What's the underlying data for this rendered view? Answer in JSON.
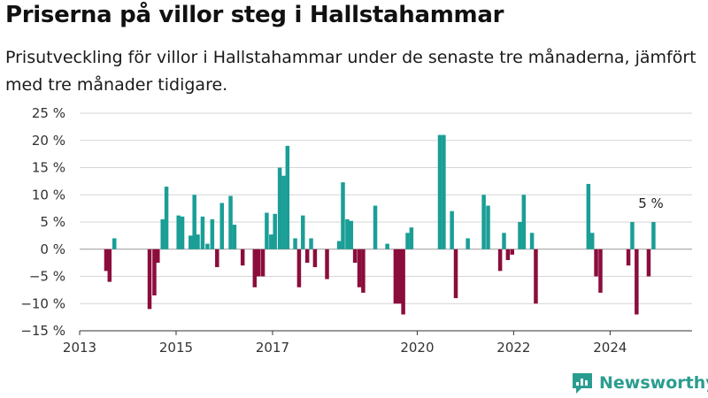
{
  "title": "Priserna på villor steg i Hallstahammar",
  "subtitle": "Prisutveckling för villor i Hallstahammar under de senaste tre månaderna, jämfört med tre månader tidigare.",
  "brand": {
    "name": "Newsworthy",
    "icon": "newsworthy-logo-icon"
  },
  "colors": {
    "positive": "#1a9e96",
    "negative": "#8b0d3c",
    "grid": "#d6d6d6",
    "axis": "#333333",
    "brand": "#2a9d8f"
  },
  "chart_data": {
    "type": "bar",
    "ylabel": "",
    "xlabel": "",
    "ylim": [
      -15,
      25
    ],
    "y_ticks": [
      -15,
      -10,
      -5,
      0,
      5,
      10,
      15,
      20,
      25
    ],
    "y_tick_labels": [
      "−15 %",
      "−10 %",
      "−5 %",
      "0 %",
      "5 %",
      "10 %",
      "15 %",
      "20 %",
      "25 %"
    ],
    "x_range": [
      2013,
      2025.7
    ],
    "x_ticks": [
      2013,
      2015,
      2017,
      2020,
      2022,
      2024
    ],
    "x_tick_labels": [
      "2013",
      "2015",
      "2017",
      "2020",
      "2022",
      "2024"
    ],
    "annotation": {
      "text": "5 %",
      "x": 2024.92,
      "y": 5
    },
    "grid": true,
    "bars": [
      {
        "x": 2013.55,
        "y": -4
      },
      {
        "x": 2013.62,
        "y": -6
      },
      {
        "x": 2013.72,
        "y": 2
      },
      {
        "x": 2014.45,
        "y": -11
      },
      {
        "x": 2014.55,
        "y": -8.5
      },
      {
        "x": 2014.62,
        "y": -2.5
      },
      {
        "x": 2014.72,
        "y": 5.5
      },
      {
        "x": 2014.8,
        "y": 11.5
      },
      {
        "x": 2015.05,
        "y": 6.2
      },
      {
        "x": 2015.13,
        "y": 6
      },
      {
        "x": 2015.3,
        "y": 2.5
      },
      {
        "x": 2015.38,
        "y": 10
      },
      {
        "x": 2015.45,
        "y": 2.7
      },
      {
        "x": 2015.55,
        "y": 6
      },
      {
        "x": 2015.65,
        "y": 1
      },
      {
        "x": 2015.75,
        "y": 5.5
      },
      {
        "x": 2015.85,
        "y": -3.3
      },
      {
        "x": 2015.95,
        "y": 8.5
      },
      {
        "x": 2016.13,
        "y": 9.8
      },
      {
        "x": 2016.21,
        "y": 4.5
      },
      {
        "x": 2016.38,
        "y": -3
      },
      {
        "x": 2016.63,
        "y": -7
      },
      {
        "x": 2016.71,
        "y": -5
      },
      {
        "x": 2016.8,
        "y": -5
      },
      {
        "x": 2016.88,
        "y": 6.7
      },
      {
        "x": 2016.97,
        "y": 2.7
      },
      {
        "x": 2017.05,
        "y": 6.5
      },
      {
        "x": 2017.15,
        "y": 15
      },
      {
        "x": 2017.23,
        "y": 13.5
      },
      {
        "x": 2017.31,
        "y": 19
      },
      {
        "x": 2017.47,
        "y": 2
      },
      {
        "x": 2017.55,
        "y": -7
      },
      {
        "x": 2017.63,
        "y": 6.2
      },
      {
        "x": 2017.72,
        "y": -2.5
      },
      {
        "x": 2017.8,
        "y": 2
      },
      {
        "x": 2017.88,
        "y": -3.3
      },
      {
        "x": 2018.13,
        "y": -5.5
      },
      {
        "x": 2018.38,
        "y": 1.5
      },
      {
        "x": 2018.46,
        "y": 12.3
      },
      {
        "x": 2018.55,
        "y": 5.5
      },
      {
        "x": 2018.63,
        "y": 5.2
      },
      {
        "x": 2018.71,
        "y": -2.5
      },
      {
        "x": 2018.8,
        "y": -7
      },
      {
        "x": 2018.88,
        "y": -8
      },
      {
        "x": 2019.13,
        "y": 8
      },
      {
        "x": 2019.38,
        "y": 1
      },
      {
        "x": 2019.55,
        "y": -10
      },
      {
        "x": 2019.63,
        "y": -10
      },
      {
        "x": 2019.71,
        "y": -12
      },
      {
        "x": 2019.8,
        "y": 3
      },
      {
        "x": 2019.88,
        "y": 4
      },
      {
        "x": 2020.47,
        "y": 21
      },
      {
        "x": 2020.55,
        "y": 21
      },
      {
        "x": 2020.72,
        "y": 7
      },
      {
        "x": 2020.8,
        "y": -9
      },
      {
        "x": 2021.05,
        "y": 2
      },
      {
        "x": 2021.38,
        "y": 10
      },
      {
        "x": 2021.47,
        "y": 8
      },
      {
        "x": 2021.72,
        "y": -4
      },
      {
        "x": 2021.8,
        "y": 3
      },
      {
        "x": 2021.88,
        "y": -2
      },
      {
        "x": 2021.97,
        "y": -1
      },
      {
        "x": 2022.13,
        "y": 5
      },
      {
        "x": 2022.21,
        "y": 10
      },
      {
        "x": 2022.38,
        "y": 3
      },
      {
        "x": 2022.46,
        "y": -10
      },
      {
        "x": 2023.55,
        "y": 12
      },
      {
        "x": 2023.63,
        "y": 3
      },
      {
        "x": 2023.71,
        "y": -5
      },
      {
        "x": 2023.8,
        "y": -8
      },
      {
        "x": 2024.38,
        "y": -3
      },
      {
        "x": 2024.46,
        "y": 5
      },
      {
        "x": 2024.55,
        "y": -12
      },
      {
        "x": 2024.8,
        "y": -5
      },
      {
        "x": 2024.9,
        "y": 5
      }
    ]
  }
}
